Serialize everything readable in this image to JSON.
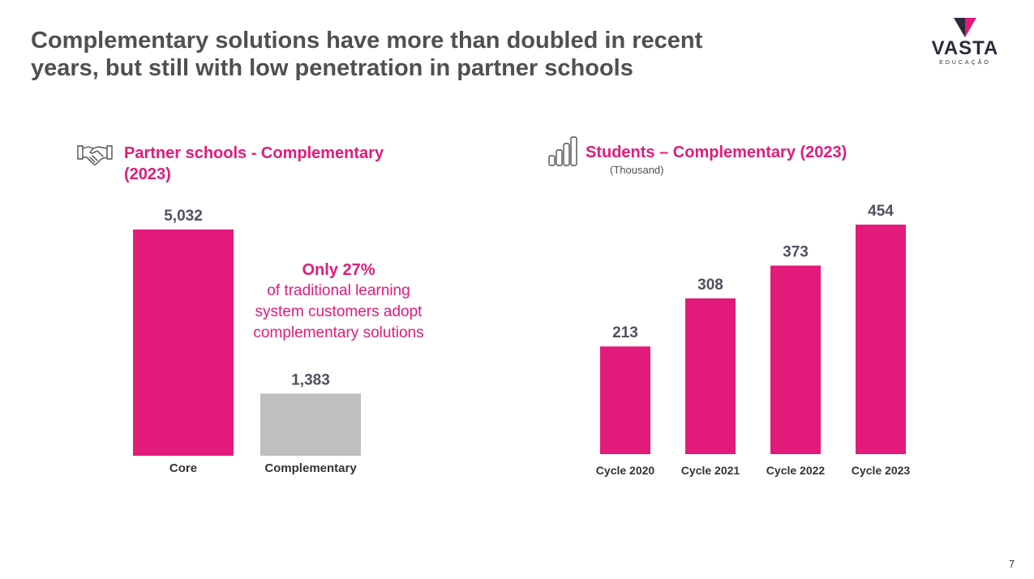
{
  "slide": {
    "title_lines": [
      "Complementary solutions have more than doubled in recent",
      "years, but still with low penetration in partner schools"
    ],
    "page_number": "7"
  },
  "logo": {
    "word": "VASTA",
    "sub": "EDUCAÇÃO"
  },
  "icons": {
    "left": "handshake-icon",
    "right": "bar-chart-icon"
  },
  "colors": {
    "accent": "#e21b7a",
    "secondary": "#bfbfbf",
    "label": "#505060",
    "title": "#505050"
  },
  "left_panel": {
    "title_lines": [
      "Partner schools - Complementary",
      "(2023)"
    ]
  },
  "right_panel": {
    "title": "Students – Complementary (2023)",
    "subtitle": "(Thousand)"
  },
  "callout": {
    "highlight": "Only 27%",
    "lines": [
      "of traditional learning",
      "system customers adopt",
      "complementary solutions"
    ]
  },
  "chart_data": [
    {
      "type": "bar",
      "title": "Partner schools - Complementary (2023)",
      "categories": [
        "Core",
        "Complementary"
      ],
      "values": [
        5032,
        1383
      ],
      "value_labels": [
        "5,032",
        "1,383"
      ],
      "colors": [
        "#e21b7a",
        "#bfbfbf"
      ],
      "ylim": [
        0,
        5032
      ],
      "grid": false
    },
    {
      "type": "bar",
      "title": "Students – Complementary (2023)",
      "ylabel": "(Thousand)",
      "categories": [
        "Cycle 2020",
        "Cycle 2021",
        "Cycle 2022",
        "Cycle 2023"
      ],
      "values": [
        213,
        308,
        373,
        454
      ],
      "value_labels": [
        "213",
        "308",
        "373",
        "454"
      ],
      "colors": [
        "#e21b7a",
        "#e21b7a",
        "#e21b7a",
        "#e21b7a"
      ],
      "ylim": [
        0,
        454
      ],
      "grid": false
    }
  ]
}
